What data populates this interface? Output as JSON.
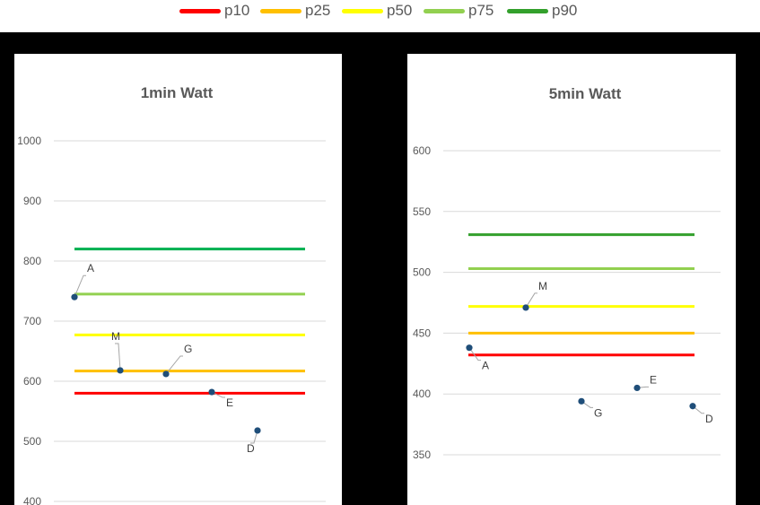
{
  "legend": [
    {
      "name": "p10",
      "color": "#ff0000"
    },
    {
      "name": "p25",
      "color": "#ffc000"
    },
    {
      "name": "p50",
      "color": "#ffff00"
    },
    {
      "name": "p75",
      "color": "#92d050"
    },
    {
      "name": "p90",
      "color": "#33a02c"
    }
  ],
  "chart_data": [
    {
      "type": "line",
      "title": "1min Watt",
      "xlabel": "",
      "ylabel": "",
      "ylim": [
        400,
        1000
      ],
      "yticks": [
        400,
        500,
        600,
        700,
        800,
        900,
        1000
      ],
      "grid": true,
      "legend": "top",
      "series": [
        {
          "name": "p10",
          "color": "#ff0000",
          "value": 580
        },
        {
          "name": "p25",
          "color": "#ffc000",
          "value": 617
        },
        {
          "name": "p50",
          "color": "#ffff00",
          "value": 677
        },
        {
          "name": "p75",
          "color": "#92d050",
          "value": 745
        },
        {
          "name": "p90",
          "color": "#00b050",
          "value": 820
        }
      ],
      "points": [
        {
          "label": "A",
          "value": 740
        },
        {
          "label": "M",
          "value": 618
        },
        {
          "label": "G",
          "value": 612
        },
        {
          "label": "E",
          "value": 582
        },
        {
          "label": "D",
          "value": 518
        }
      ],
      "point_color": "#1f4e79"
    },
    {
      "type": "line",
      "title": "5min Watt",
      "xlabel": "",
      "ylabel": "",
      "ylim": [
        350,
        600
      ],
      "yticks": [
        350,
        400,
        450,
        500,
        550,
        600
      ],
      "grid": true,
      "legend": "top",
      "series": [
        {
          "name": "p10",
          "color": "#ff0000",
          "value": 432
        },
        {
          "name": "p25",
          "color": "#ffc000",
          "value": 450
        },
        {
          "name": "p50",
          "color": "#ffff00",
          "value": 472
        },
        {
          "name": "p75",
          "color": "#92d050",
          "value": 503
        },
        {
          "name": "p90",
          "color": "#33a02c",
          "value": 531
        }
      ],
      "points": [
        {
          "label": "A",
          "value": 438
        },
        {
          "label": "M",
          "value": 471
        },
        {
          "label": "G",
          "value": 394
        },
        {
          "label": "E",
          "value": 405
        },
        {
          "label": "D",
          "value": 390
        }
      ],
      "point_color": "#1f4e79"
    }
  ]
}
